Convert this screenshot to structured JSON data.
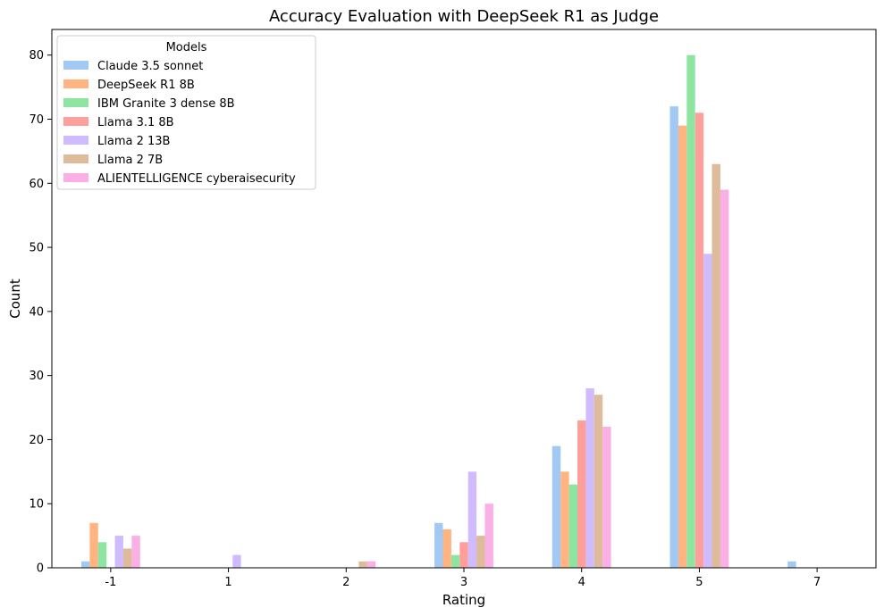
{
  "chart_data": {
    "type": "bar",
    "title": "Accuracy Evaluation with DeepSeek R1 as Judge",
    "xlabel": "Rating",
    "ylabel": "Count",
    "categories": [
      "-1",
      "1",
      "2",
      "3",
      "4",
      "5",
      "7"
    ],
    "ylim": [
      0,
      84
    ],
    "yticks": [
      0,
      10,
      20,
      30,
      40,
      50,
      60,
      70,
      80
    ],
    "grid": false,
    "legend": {
      "title": "Models",
      "position": "top-left"
    },
    "series": [
      {
        "name": "Claude 3.5 sonnet",
        "color": "#a1c9f4",
        "values": [
          1,
          0,
          0,
          7,
          19,
          72,
          1
        ]
      },
      {
        "name": "DeepSeek R1 8B",
        "color": "#ffb482",
        "values": [
          7,
          0,
          0,
          6,
          15,
          69,
          0
        ]
      },
      {
        "name": "IBM Granite 3 dense 8B",
        "color": "#8de5a1",
        "values": [
          4,
          0,
          0,
          2,
          13,
          80,
          0
        ]
      },
      {
        "name": "Llama 3.1 8B",
        "color": "#ff9f9b",
        "values": [
          0,
          0,
          0,
          4,
          23,
          71,
          0
        ]
      },
      {
        "name": "Llama 2 13B",
        "color": "#d0bbff",
        "values": [
          5,
          2,
          0,
          15,
          28,
          49,
          0
        ]
      },
      {
        "name": "Llama 2 7B",
        "color": "#debb9b",
        "values": [
          3,
          0,
          1,
          5,
          27,
          63,
          0
        ]
      },
      {
        "name": "ALIENTELLIGENCE cyberaisecurity",
        "color": "#fab0e4",
        "values": [
          5,
          0,
          1,
          10,
          22,
          59,
          0
        ]
      }
    ]
  }
}
